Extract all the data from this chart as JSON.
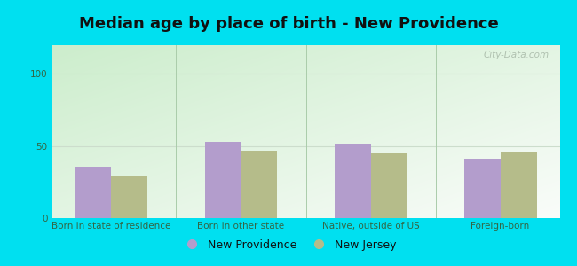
{
  "title": "Median age by place of birth - New Providence",
  "categories": [
    "Born in state of residence",
    "Born in other state",
    "Native, outside of US",
    "Foreign-born"
  ],
  "new_providence": [
    36,
    53,
    52,
    41
  ],
  "new_jersey": [
    29,
    47,
    45,
    46
  ],
  "bar_color_np": "#b39dcc",
  "bar_color_nj": "#b5bc8a",
  "background_outer": "#00e0f0",
  "grad_top_left": "#cce8cc",
  "grad_bottom_right": "#eefaee",
  "ylim": [
    0,
    120
  ],
  "yticks": [
    0,
    50,
    100
  ],
  "legend_np": "New Providence",
  "legend_nj": "New Jersey",
  "bar_width": 0.28,
  "title_fontsize": 13,
  "tick_fontsize": 7.5,
  "legend_fontsize": 9,
  "watermark": "City-Data.com",
  "separator_color": "#aaccaa",
  "gridline_color": "#ccddcc"
}
